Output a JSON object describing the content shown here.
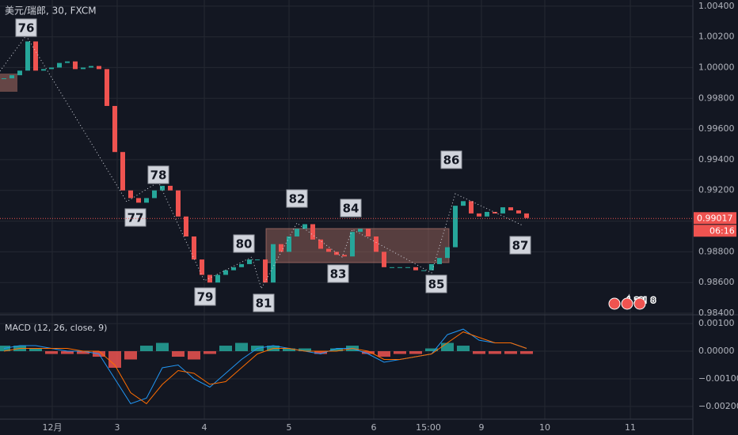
{
  "chart_data": [
    {
      "type": "candlestick",
      "title": "美元/瑞郎, 30, FXCM",
      "x": [
        1,
        3,
        5,
        7,
        9,
        11,
        13,
        15,
        17,
        19,
        21,
        23,
        25,
        27,
        29,
        31,
        33,
        35,
        37,
        39,
        41,
        43,
        45,
        47,
        49,
        51,
        53,
        55,
        57,
        59,
        61,
        63,
        65,
        67,
        69,
        71,
        73,
        75,
        77,
        79,
        81,
        83,
        85,
        87,
        89,
        91,
        93,
        95,
        97,
        99,
        101,
        103,
        105,
        107,
        109,
        111,
        113,
        115,
        117,
        119,
        121,
        123,
        125,
        127,
        129,
        131,
        133
      ],
      "values": [
        0.9993,
        0.9995,
        0.9998,
        1.0017,
        0.9998,
        0.9999,
        1.0,
        1.0003,
        1.0004,
        0.9999,
        1.0,
        1.0001,
        0.9999,
        0.9975,
        0.9945,
        0.992,
        0.9915,
        0.9912,
        0.9915,
        0.992,
        0.9923,
        0.992,
        0.9903,
        0.989,
        0.9875,
        0.9865,
        0.986,
        0.9865,
        0.9868,
        0.987,
        0.9872,
        0.9875,
        0.9875,
        0.986,
        0.9885,
        0.988,
        0.989,
        0.9895,
        0.9898,
        0.9888,
        0.9882,
        0.988,
        0.9878,
        0.9877,
        0.9893,
        0.9895,
        0.989,
        0.988,
        0.987,
        0.987,
        0.987,
        0.987,
        0.9868,
        0.9868,
        0.9872,
        0.9876,
        0.9883,
        0.991,
        0.9913,
        0.9905,
        0.9903,
        0.9906,
        0.9905,
        0.9909,
        0.9907,
        0.9905,
        0.9902
      ],
      "up_color": "#26a69a",
      "down_color": "#ef5350",
      "xlim": [
        0,
        175
      ],
      "xticks": [
        {
          "value": 13.2,
          "label": "12月"
        },
        {
          "value": 29.6,
          "label": "3"
        },
        {
          "value": 51.6,
          "label": "4"
        },
        {
          "value": 73,
          "label": "5"
        },
        {
          "value": 94.4,
          "label": "6"
        },
        {
          "value": 108.2,
          "label": "15:00"
        },
        {
          "value": 121.6,
          "label": "9"
        },
        {
          "value": 137.6,
          "label": "10"
        },
        {
          "value": 159.2,
          "label": "11"
        }
      ],
      "ylim": [
        0.9839,
        1.0044
      ],
      "yticks": [
        {
          "value": 1.004,
          "label": "1.00400"
        },
        {
          "value": 1.002,
          "label": "1.00200"
        },
        {
          "value": 1.0,
          "label": "1.00000"
        },
        {
          "value": 0.998,
          "label": "0.99800"
        },
        {
          "value": 0.996,
          "label": "0.99600"
        },
        {
          "value": 0.994,
          "label": "0.99400"
        },
        {
          "value": 0.992,
          "label": "0.99200"
        },
        {
          "value": 0.99,
          "label": "0.99000"
        },
        {
          "value": 0.988,
          "label": "0.98800"
        },
        {
          "value": 0.986,
          "label": "0.98600"
        },
        {
          "value": 0.984,
          "label": "0.98400"
        }
      ],
      "grid": true,
      "last_price": 0.99017,
      "last_price_color": "#ef5350",
      "countdown": "06:16",
      "wave_labels": [
        "76",
        "77",
        "78",
        "79",
        "80",
        "81",
        "82",
        "83",
        "84",
        "85",
        "86",
        "87"
      ],
      "event_badges": [
        "4",
        "22!",
        "8"
      ]
    },
    {
      "type": "macd",
      "title": "MACD (12, 26, close, 9)",
      "x": [
        1,
        5,
        9,
        13,
        17,
        21,
        25,
        29,
        33,
        37,
        41,
        45,
        49,
        53,
        57,
        61,
        65,
        69,
        73,
        77,
        81,
        85,
        89,
        93,
        97,
        101,
        105,
        109,
        113,
        117,
        121,
        125,
        129,
        133
      ],
      "histogram": [
        0.0002,
        0.0002,
        0.0001,
        -0.0001,
        -0.0001,
        -0.0001,
        -0.0002,
        -0.0006,
        -0.0003,
        0.0002,
        0.0003,
        -0.0002,
        -0.0003,
        -0.0001,
        0.0002,
        0.0003,
        0.0002,
        0.0002,
        0.0001,
        0.0001,
        -0.0001,
        0.0001,
        0.0002,
        -0.0001,
        -0.0002,
        -0.0001,
        -0.0001,
        0.0001,
        0.0003,
        0.0002,
        -0.0001,
        -0.0001,
        -0.0001,
        -0.0001
      ],
      "macd": [
        0.0001,
        0.0002,
        0.0002,
        0.0001,
        0.0,
        0.0,
        -0.0001,
        -0.001,
        -0.0019,
        -0.0017,
        -0.0006,
        -0.0005,
        -0.001,
        -0.0013,
        -0.0008,
        -0.0003,
        0.0001,
        0.0002,
        0.0001,
        0.0,
        -0.0001,
        0.0001,
        0.0001,
        -0.0001,
        -0.0004,
        -0.0003,
        -0.0002,
        -0.0001,
        0.0006,
        0.0008,
        0.0004,
        0.0003,
        0.0003,
        0.0001
      ],
      "signal": [
        0.0,
        0.0001,
        0.0001,
        0.0001,
        0.0001,
        0.0,
        0.0,
        -0.0005,
        -0.0015,
        -0.0019,
        -0.0012,
        -0.0007,
        -0.0008,
        -0.0012,
        -0.0011,
        -0.0006,
        -0.0001,
        0.0001,
        0.0001,
        0.0,
        0.0,
        0.0,
        0.0001,
        0.0,
        -0.0003,
        -0.0003,
        -0.0002,
        -0.0001,
        0.0003,
        0.0007,
        0.0005,
        0.0003,
        0.0003,
        0.0001
      ],
      "hist_up_color": "#26a69a",
      "hist_down_color": "#ef5350",
      "macd_color": "#2196f3",
      "signal_color": "#ff6d00",
      "xlim": [
        0,
        175
      ],
      "ylim": [
        -0.00246,
        0.00126
      ],
      "yticks": [
        {
          "value": 0.001,
          "label": "0.00100"
        },
        {
          "value": 0.0,
          "label": "0.00000"
        },
        {
          "value": -0.001,
          "label": "−0.00100"
        },
        {
          "value": -0.002,
          "label": "−0.00200"
        }
      ],
      "grid": true
    }
  ]
}
